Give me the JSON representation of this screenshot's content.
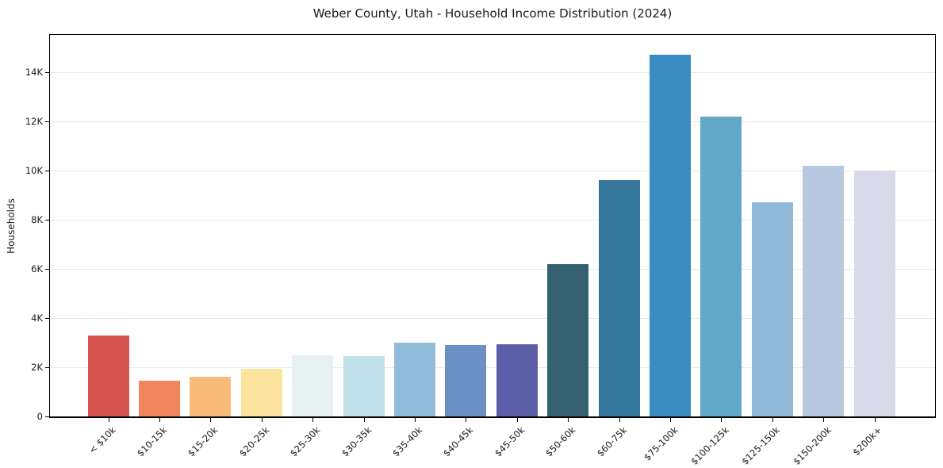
{
  "chart_data": {
    "type": "bar",
    "title": "Weber County, Utah - Household Income Distribution (2024)",
    "xlabel": "",
    "ylabel": "Households",
    "ylim": [
      0,
      15500
    ],
    "grid": "horizontal",
    "legend_position": "none",
    "categories": [
      "< $10k",
      "$10-15k",
      "$15-20k",
      "$20-25k",
      "$25-30k",
      "$30-35k",
      "$35-40k",
      "$40-45k",
      "$45-50k",
      "$50-60k",
      "$60-75k",
      "$75-100k",
      "$100-125k",
      "$125-150k",
      "$150-200k",
      "$200k+"
    ],
    "values": [
      3300,
      1450,
      1600,
      1950,
      2500,
      2450,
      3000,
      2900,
      2950,
      6200,
      9600,
      14700,
      12200,
      8700,
      10200,
      10000
    ],
    "bar_colors": [
      "#d6544f",
      "#f1865e",
      "#f9bb7a",
      "#fde49e",
      "#e7f1f2",
      "#bfdfe9",
      "#90bcd9",
      "#6b90c6",
      "#5c5ea8",
      "#35606f",
      "#36789c",
      "#398dc3",
      "#62a8c9",
      "#93b9d9",
      "#b7c8e0",
      "#d9dae9"
    ],
    "y_ticks": [
      {
        "value": 0,
        "label": "0"
      },
      {
        "value": 2000,
        "label": "2K"
      },
      {
        "value": 4000,
        "label": "4K"
      },
      {
        "value": 6000,
        "label": "6K"
      },
      {
        "value": 8000,
        "label": "8K"
      },
      {
        "value": 10000,
        "label": "10K"
      },
      {
        "value": 12000,
        "label": "12K"
      },
      {
        "value": 14000,
        "label": "14K"
      }
    ],
    "colors": {
      "background": "#ffffff",
      "gridline": "#e8e8e8",
      "spine": "#000000",
      "text": "#1a1a1a"
    }
  }
}
